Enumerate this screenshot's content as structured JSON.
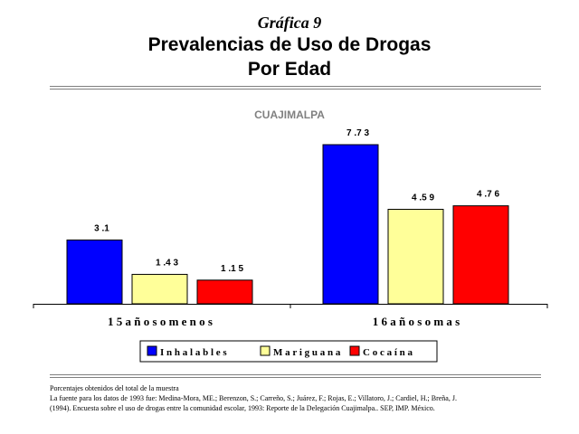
{
  "header": {
    "supertitle": "Gráfica 9",
    "title": "Prevalencias de Uso de Drogas",
    "subtitle": "Por Edad"
  },
  "chart_data": {
    "type": "bar",
    "title": "CUAJIMALPA",
    "categories": [
      "15 años o menos",
      "16 años o mas"
    ],
    "series": [
      {
        "name": "Inhalables",
        "values": [
          3.1,
          7.73
        ],
        "labels": [
          "3 .1",
          "7 .7 3"
        ],
        "color": "#0000ff"
      },
      {
        "name": "Mariguana",
        "values": [
          1.43,
          4.59
        ],
        "labels": [
          "1 .4 3",
          "4 .5 9"
        ],
        "color": "#ffff99"
      },
      {
        "name": "Cocaína",
        "values": [
          1.15,
          4.76
        ],
        "labels": [
          "1 .1 5",
          "4 .7 6"
        ],
        "color": "#ff0000"
      }
    ],
    "ylim": [
      0,
      8
    ],
    "grid": false,
    "legend_position": "bottom",
    "title_color": "#808080"
  },
  "footnotes": [
    "Porcentajes obtenidos del total de la muestra",
    "La fuente para los datos de 1993 fue: Medina-Mora, ME.; Berenzon, S.; Carreño, S.; Juárez, F.; Rojas, E.; Villatoro, J.; Cardiel, H.; Breña, J.",
    "(1994). Encuesta sobre el uso de drogas entre la comunidad escolar, 1993: Reporte de la Delegación Cuajimalpa.. SEP, IMP. México."
  ]
}
